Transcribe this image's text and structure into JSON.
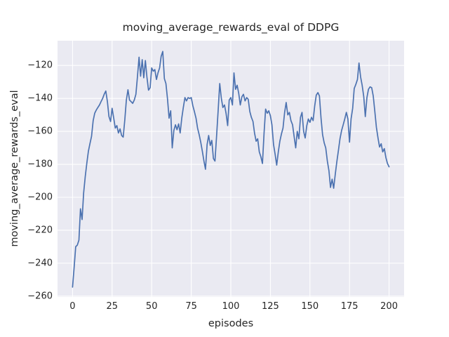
{
  "chart_data": {
    "type": "line",
    "title": "moving_average_rewards_eval of DDPG",
    "xlabel": "episodes",
    "ylabel": "moving_average_rewards_eval",
    "x_start": 0,
    "x_step": 1,
    "n_points": 201,
    "values": [
      -254.5,
      -242.5,
      -230,
      -229,
      -226,
      -207,
      -213.5,
      -197.5,
      -187.5,
      -179.5,
      -172,
      -167.5,
      -163,
      -153.5,
      -149,
      -147,
      -145.5,
      -144,
      -142,
      -140,
      -137.5,
      -135.5,
      -142,
      -151,
      -154,
      -146,
      -152,
      -158,
      -156.5,
      -161,
      -158.5,
      -162.5,
      -163.5,
      -153,
      -141,
      -134.8,
      -141,
      -142,
      -143,
      -141,
      -137.5,
      -127,
      -115,
      -126.5,
      -116.5,
      -127.5,
      -117,
      -127,
      -135,
      -133.5,
      -121.5,
      -123.5,
      -122.5,
      -128.5,
      -124.5,
      -121.5,
      -114.5,
      -111.5,
      -128,
      -131,
      -140.5,
      -152,
      -147.5,
      -170,
      -159.5,
      -156,
      -159,
      -155.5,
      -161,
      -152,
      -145.5,
      -139.5,
      -141.5,
      -139.5,
      -140,
      -139.5,
      -144.5,
      -148,
      -152,
      -158,
      -162,
      -166.5,
      -172,
      -178,
      -183,
      -168,
      -162.5,
      -168.5,
      -165.5,
      -176.5,
      -178,
      -163,
      -147,
      -131,
      -140,
      -145.5,
      -144,
      -149,
      -156.5,
      -141,
      -139.5,
      -144,
      -124.5,
      -134.5,
      -132,
      -137,
      -144,
      -139,
      -137.5,
      -141.5,
      -139.5,
      -140.5,
      -148,
      -151.5,
      -154,
      -161,
      -166,
      -164.5,
      -172.5,
      -175.5,
      -179.5,
      -161,
      -146.5,
      -149,
      -147.5,
      -150.5,
      -156,
      -168,
      -174,
      -180.5,
      -172.5,
      -166,
      -161.5,
      -158,
      -148.5,
      -142.5,
      -150,
      -148.5,
      -153.5,
      -156,
      -163,
      -170,
      -160,
      -164.5,
      -151.5,
      -148.5,
      -160,
      -164,
      -156.5,
      -152.5,
      -154.5,
      -151.5,
      -153.5,
      -144.5,
      -138,
      -136.5,
      -138.5,
      -152,
      -162,
      -167,
      -170,
      -178,
      -184,
      -194,
      -189,
      -194.5,
      -186,
      -178.5,
      -171.5,
      -164.5,
      -159.5,
      -156,
      -152.5,
      -148.5,
      -152.5,
      -166.5,
      -152.5,
      -146,
      -134,
      -131.5,
      -128.5,
      -118.5,
      -127,
      -132,
      -139,
      -151,
      -139.5,
      -134.5,
      -133,
      -133.5,
      -138.5,
      -148,
      -157.5,
      -164,
      -169.5,
      -167.5,
      -172.5,
      -170.5,
      -176,
      -179.5,
      -181.5
    ],
    "xticks": [
      {
        "v": 0,
        "label": "0"
      },
      {
        "v": 25,
        "label": "25"
      },
      {
        "v": 50,
        "label": "50"
      },
      {
        "v": 75,
        "label": "75"
      },
      {
        "v": 100,
        "label": "100"
      },
      {
        "v": 125,
        "label": "125"
      },
      {
        "v": 150,
        "label": "150"
      },
      {
        "v": 175,
        "label": "175"
      },
      {
        "v": 200,
        "label": "200"
      }
    ],
    "yticks": [
      {
        "v": -260,
        "label": "−260"
      },
      {
        "v": -240,
        "label": "−240"
      },
      {
        "v": -220,
        "label": "−220"
      },
      {
        "v": -200,
        "label": "−200"
      },
      {
        "v": -180,
        "label": "−180"
      },
      {
        "v": -160,
        "label": "−160"
      },
      {
        "v": -140,
        "label": "−140"
      },
      {
        "v": -120,
        "label": "−120"
      }
    ],
    "xlim": [
      -9.5,
      209.5
    ],
    "ylim": [
      -260.5,
      -105
    ],
    "grid": true,
    "legend": null,
    "colors": {
      "line": "#4c72b0",
      "plot_bg": "#eaeaf2",
      "grid": "#ffffff",
      "figure_bg": "#ffffff",
      "text": "#262626"
    }
  }
}
